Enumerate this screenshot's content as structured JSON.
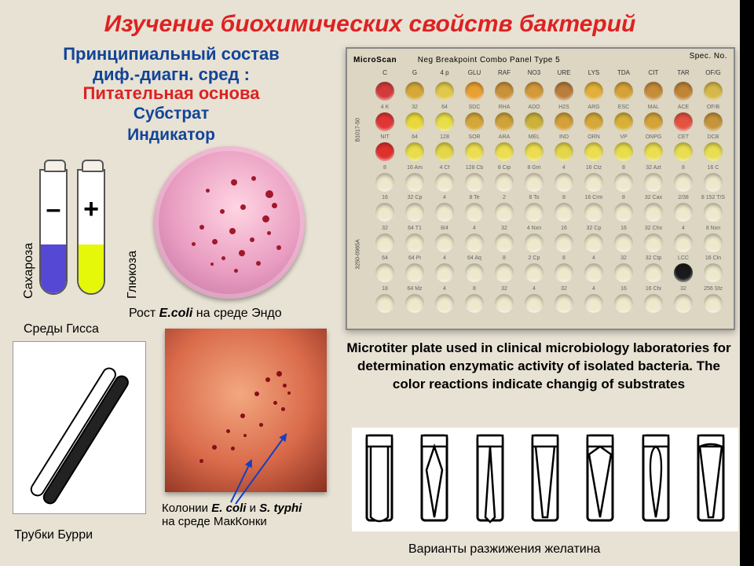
{
  "title": "Изучение биохимических свойств бактерий",
  "subtitle": {
    "line1": "Принципиальный состав",
    "line2": "диф.-диагн. сред :",
    "line3": "Питательная основа",
    "line4": "Субстрат",
    "line5": "Индикатор"
  },
  "hiss": {
    "left_sign": "–",
    "right_sign": "+",
    "left_label": "Сахароза",
    "right_label": "Глюкоза",
    "caption": "Среды Гисса",
    "left_fill": "#5448d4",
    "right_fill": "#e6f80a"
  },
  "endo": {
    "label_pre": "Рост ",
    "label_em": "E.coli",
    "label_post": " на среде Эндо"
  },
  "burri": {
    "caption": "Трубки Бурри"
  },
  "mac": {
    "label_pre": "Колонии ",
    "em1": "E. coli",
    "mid": " и ",
    "em2": "S. typhi",
    "post": " на среде МакКонки"
  },
  "plate": {
    "header_left": "MicroScan",
    "header_right": "Neg Breakpoint Combo Panel Type 5",
    "header_spec": "Spec. No.",
    "side": [
      "B1017-50",
      "3250-0965A"
    ],
    "cols": [
      "C",
      "G",
      "4 p",
      "GLU",
      "RAF",
      "NO3",
      "URE",
      "LYS",
      "TDA",
      "CIT",
      "TAR",
      "OF/G"
    ],
    "row1_labels": [
      "4 K",
      "32",
      "64",
      "SDC",
      "RHA",
      "ADO",
      "H2S",
      "ARG",
      "ESC",
      "MAL",
      "ACE",
      "OF/B"
    ],
    "row2_labels": [
      "NIT",
      "64",
      "128",
      "SOR",
      "ARA",
      "MEL",
      "IND",
      "ORN",
      "VP",
      "ONPG",
      "CET",
      "DCB"
    ],
    "row3_labels": [
      "8",
      "16 Am",
      "4 Cf",
      "128 Cb",
      "8 Cip",
      "8 Gm",
      "4",
      "16 Ctz",
      "8",
      "32 Azt",
      "8",
      "16 C"
    ],
    "row4_labels": [
      "16",
      "32 Cp",
      "4",
      "8 Te",
      "2",
      "8 To",
      "8",
      "16 Crm",
      "8",
      "32 Cax",
      "2/38",
      "8 152 T/S"
    ],
    "row5_labels": [
      "32",
      "64 T1",
      "8/4",
      "4",
      "32",
      "4 Nxn",
      "16",
      "32 Cp",
      "16",
      "32 Chx",
      "4",
      "8 Nxn"
    ],
    "row6_labels": [
      "64",
      "64 Pi",
      "4",
      "64 Aq",
      "8",
      "2 Cp",
      "8",
      "4",
      "32",
      "32 Ctp",
      "LCC",
      "16 Cln"
    ],
    "row7_labels": [
      "18",
      "64 Mz",
      "4",
      "8",
      "32",
      "4",
      "32",
      "4",
      "16",
      "16 Cfx",
      "32",
      "256 Sfz"
    ],
    "row1_colors": [
      "#d43a3a",
      "#d6a838",
      "#e0c84a",
      "#e8a032",
      "#ca9238",
      "#d49a38",
      "#ba7e3a",
      "#e2b03a",
      "#d6a238",
      "#c68c38",
      "#c08434",
      "#d6b84a"
    ],
    "row2_colors": [
      "#e03636",
      "#e8d83a",
      "#e8de48",
      "#d4a838",
      "#d0a238",
      "#ccb23a",
      "#d4a038",
      "#d6a838",
      "#d8b038",
      "#d4a438",
      "#e45240",
      "#c6943a"
    ],
    "row3_colors": [
      "#e0302e",
      "#e8de4a",
      "#e4d648",
      "#ecde50",
      "#ecde50",
      "#ecde50",
      "#e4d648",
      "#ecde50",
      "#e8de4c",
      "#ecde50",
      "#e8de50",
      "#e8de50"
    ],
    "row4_colors": [
      "#eee8cc",
      "#eee8cc",
      "#eee8cc",
      "#eee8cc",
      "#eee8cc",
      "#eee8cc",
      "#eee8cc",
      "#eee8cc",
      "#eee8cc",
      "#eee8cc",
      "#eee8cc",
      "#eee8cc"
    ],
    "row5_colors": [
      "#eee8cc",
      "#eee8cc",
      "#eee8cc",
      "#eee8cc",
      "#eee8cc",
      "#eee8cc",
      "#eee8cc",
      "#eee8cc",
      "#eee8cc",
      "#eee8cc",
      "#eee8cc",
      "#eee8cc"
    ],
    "row6_colors": [
      "#eee8cc",
      "#eee8cc",
      "#eee8cc",
      "#eee8cc",
      "#eee8cc",
      "#eee8cc",
      "#eee8cc",
      "#eee8cc",
      "#eee8cc",
      "#eee8cc",
      "#eee8cc",
      "#eee8cc"
    ],
    "row7_colors": [
      "#eee8cc",
      "#eee8cc",
      "#eee8cc",
      "#eee8cc",
      "#eee8cc",
      "#eee8cc",
      "#eee8cc",
      "#eee8cc",
      "#eee8cc",
      "#eee8cc",
      "#1a1a1a",
      "#eee8cc"
    ],
    "row8_colors": [
      "#eee8cc",
      "#eee8cc",
      "#eee8cc",
      "#eee8cc",
      "#eee8cc",
      "#eee8cc",
      "#eee8cc",
      "#eee8cc",
      "#eee8cc",
      "#eee8cc",
      "#eee8cc",
      "#eee8cc"
    ],
    "caption": "Microtiter plate used in clinical microbiology laboratories for determination enzymatic activity of isolated bacteria. The color reactions indicate changig of substrates"
  },
  "gelatin": {
    "caption": "Варианты разжижения желатина"
  },
  "colonies_endo": [
    [
      98,
      42,
      8
    ],
    [
      124,
      38,
      6
    ],
    [
      142,
      56,
      10
    ],
    [
      110,
      74,
      7
    ],
    [
      84,
      80,
      6
    ],
    [
      66,
      54,
      5
    ],
    [
      138,
      88,
      9
    ],
    [
      96,
      104,
      8
    ],
    [
      74,
      118,
      7
    ],
    [
      122,
      116,
      6
    ],
    [
      144,
      108,
      5
    ],
    [
      108,
      132,
      8
    ],
    [
      86,
      140,
      5
    ],
    [
      58,
      100,
      6
    ],
    [
      150,
      72,
      7
    ],
    [
      130,
      146,
      6
    ],
    [
      102,
      156,
      5
    ],
    [
      72,
      148,
      4
    ],
    [
      48,
      122,
      5
    ],
    [
      156,
      126,
      6
    ]
  ],
  "colonies_mac": [
    [
      142,
      54,
      7
    ],
    [
      128,
      62,
      6
    ],
    [
      150,
      70,
      5
    ],
    [
      114,
      80,
      6
    ],
    [
      138,
      92,
      5
    ],
    [
      96,
      108,
      6
    ],
    [
      78,
      128,
      5
    ],
    [
      60,
      148,
      6
    ],
    [
      44,
      166,
      5
    ],
    [
      120,
      120,
      5
    ],
    [
      100,
      134,
      4
    ],
    [
      84,
      150,
      5
    ],
    [
      156,
      80,
      4
    ],
    [
      148,
      100,
      5
    ]
  ]
}
